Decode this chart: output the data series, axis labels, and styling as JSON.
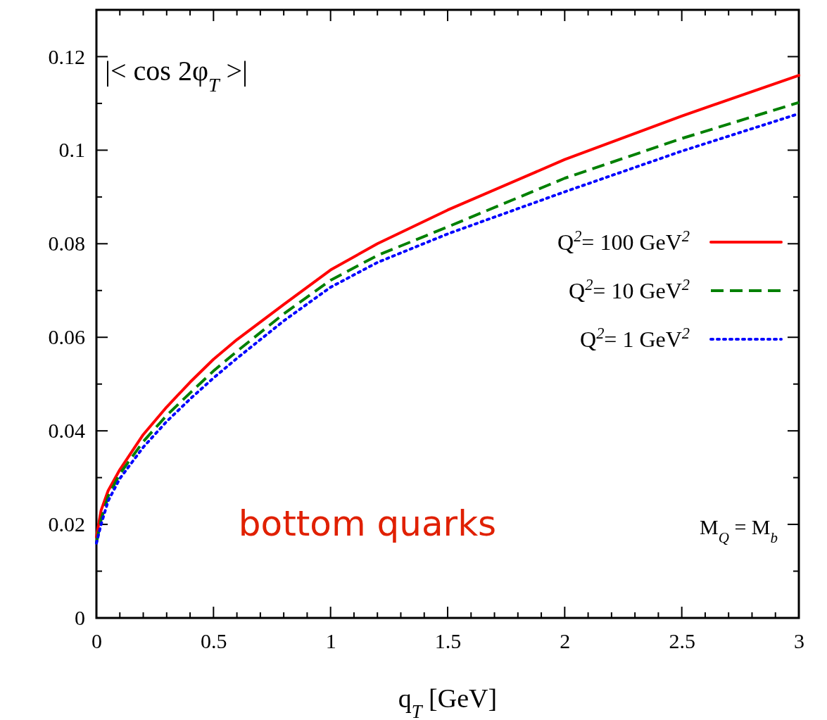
{
  "chart_data": {
    "type": "line",
    "xlabel": "q$_{T}$   [GeV]",
    "annotations": [
      "|< cos 2φ$_{T}$ >|",
      "bottom quarks",
      "M$_{Q}$ = M$_{b}$"
    ],
    "x": [
      0,
      0.02,
      0.05,
      0.1,
      0.2,
      0.3,
      0.4,
      0.5,
      0.6,
      0.8,
      1.0,
      1.2,
      1.5,
      2.0,
      2.5,
      3.0
    ],
    "series": [
      {
        "name": "Q$^{2}$= 100 GeV$^{2}$",
        "color": "#ff0000",
        "line_style": "solid",
        "values": [
          0.0173,
          0.023,
          0.0272,
          0.0317,
          0.0392,
          0.0451,
          0.0504,
          0.0553,
          0.0595,
          0.067,
          0.0744,
          0.08,
          0.0872,
          0.098,
          0.1073,
          0.116
        ]
      },
      {
        "name": "Q$^{2}$= 10 GeV$^{2}$",
        "color": "#008000",
        "line_style": "dashed",
        "values": [
          0.016,
          0.021,
          0.026,
          0.0308,
          0.0377,
          0.0433,
          0.0481,
          0.0528,
          0.057,
          0.065,
          0.0722,
          0.0775,
          0.0836,
          0.094,
          0.1025,
          0.1102
        ]
      },
      {
        "name": "Q$^{2}$= 1 GeV$^{2}$",
        "color": "#0000ff",
        "line_style": "dotted",
        "values": [
          0.016,
          0.02,
          0.025,
          0.0298,
          0.0365,
          0.042,
          0.0468,
          0.0513,
          0.0555,
          0.0635,
          0.0707,
          0.076,
          0.0821,
          0.0911,
          0.0998,
          0.1078
        ]
      }
    ],
    "xlim": [
      0,
      3
    ],
    "xticks": [
      0,
      {
        "value": 0.1,
        "label": null
      },
      {
        "value": 0.2,
        "label": null
      },
      {
        "value": 0.3,
        "label": null
      },
      {
        "value": 0.4,
        "label": null
      },
      0.5,
      {
        "value": 0.6,
        "label": null
      },
      {
        "value": 0.7,
        "label": null
      },
      {
        "value": 0.8,
        "label": null
      },
      {
        "value": 0.9,
        "label": null
      },
      1,
      {
        "value": 1.1,
        "label": null
      },
      {
        "value": 1.2,
        "label": null
      },
      {
        "value": 1.3,
        "label": null
      },
      {
        "value": 1.4,
        "label": null
      },
      1.5,
      {
        "value": 1.6,
        "label": null
      },
      {
        "value": 1.7,
        "label": null
      },
      {
        "value": 1.8,
        "label": null
      },
      {
        "value": 1.9,
        "label": null
      },
      2,
      {
        "value": 2.1,
        "label": null
      },
      {
        "value": 2.2,
        "label": null
      },
      {
        "value": 2.3,
        "label": null
      },
      {
        "value": 2.4,
        "label": null
      },
      2.5,
      {
        "value": 2.6,
        "label": null
      },
      {
        "value": 2.7,
        "label": null
      },
      {
        "value": 2.8,
        "label": null
      },
      {
        "value": 2.9,
        "label": null
      },
      3
    ],
    "ylim": [
      0,
      0.13
    ],
    "yticks": [
      0,
      {
        "value": 0.01,
        "label": null
      },
      0.02,
      {
        "value": 0.03,
        "label": null
      },
      0.04,
      {
        "value": 0.05,
        "label": null
      },
      0.06,
      {
        "value": 0.07,
        "label": null
      },
      0.08,
      {
        "value": 0.09,
        "label": null
      },
      0.1,
      {
        "value": 0.11,
        "label": null
      },
      0.12
    ],
    "legend": "right",
    "grid": false
  }
}
